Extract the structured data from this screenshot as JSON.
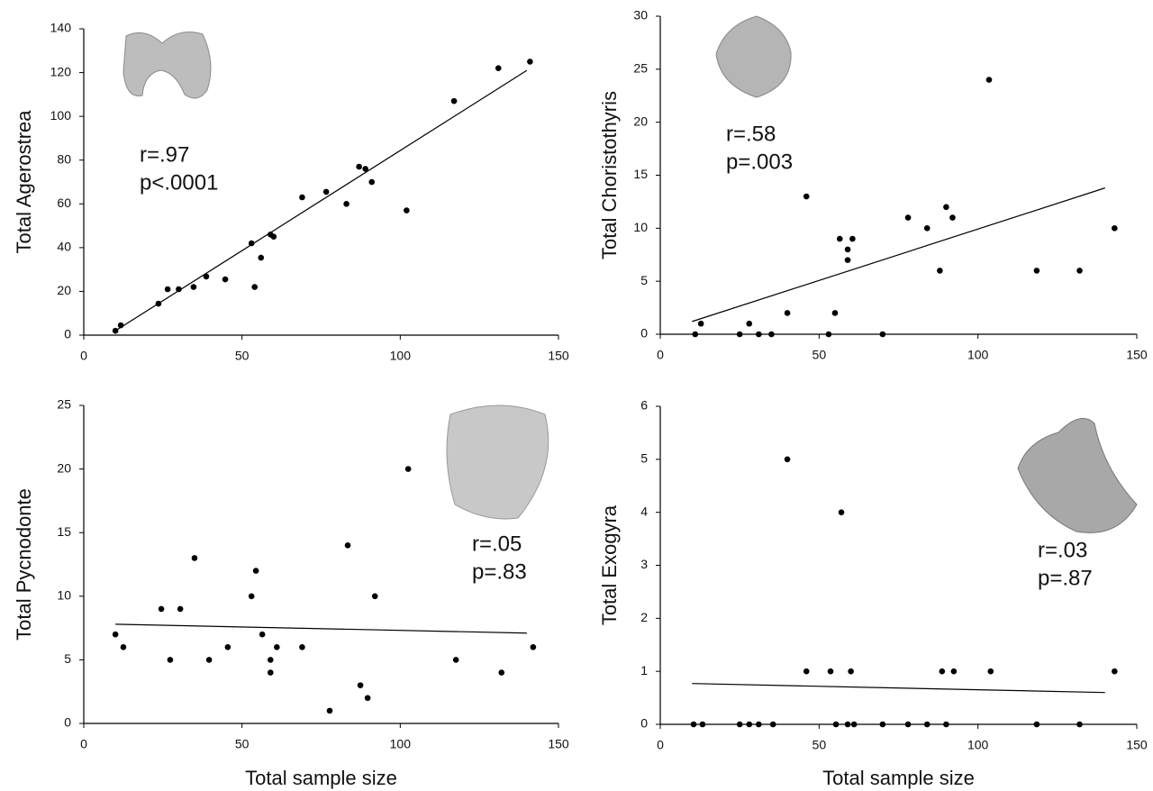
{
  "chart_data": [
    {
      "type": "scatter",
      "ylabel": "Total Agerostrea",
      "annotations": [
        "r=.97",
        "p<.0001"
      ],
      "color": "#000000",
      "x": [
        10,
        11.7,
        23.6,
        26.5,
        30,
        34.7,
        38.7,
        44.7,
        53,
        54,
        56,
        59,
        60,
        69,
        76.6,
        83,
        87,
        89,
        91,
        102,
        117,
        131,
        141
      ],
      "values": [
        2,
        4.5,
        14.4,
        21,
        21,
        22,
        26.8,
        25.5,
        42,
        22,
        35.4,
        46,
        45,
        63,
        65.5,
        60,
        77,
        76,
        70,
        57,
        107,
        122,
        125
      ],
      "trend": {
        "x": [
          10,
          140
        ],
        "values": [
          2,
          121
        ]
      },
      "xlim": [
        0,
        150
      ],
      "xticks": [
        0,
        50,
        100,
        150
      ],
      "ylim": [
        0,
        140
      ],
      "yticks": [
        0,
        20,
        40,
        60,
        80,
        100,
        120,
        140
      ]
    },
    {
      "type": "scatter",
      "ylabel": "Total Choristothyris",
      "annotations": [
        "r=.58",
        "p=.003"
      ],
      "color": "#000000",
      "x": [
        11,
        12.8,
        25,
        28,
        31,
        35,
        40,
        46,
        53,
        55,
        56.5,
        59,
        59,
        60.5,
        70,
        78,
        84,
        88,
        90,
        92,
        103.5,
        118.5,
        132,
        143
      ],
      "values": [
        0,
        1,
        0,
        1,
        0,
        0,
        2,
        13,
        0,
        2,
        9,
        8,
        7,
        9,
        0,
        11,
        10,
        6,
        12,
        11,
        24,
        6,
        6,
        10
      ],
      "trend": {
        "x": [
          10,
          140
        ],
        "values": [
          1.2,
          13.8
        ]
      },
      "xlim": [
        0,
        150
      ],
      "xticks": [
        0,
        50,
        100,
        150
      ],
      "ylim": [
        0,
        30
      ],
      "yticks": [
        0,
        5,
        10,
        15,
        20,
        25,
        30
      ]
    },
    {
      "type": "scatter",
      "ylabel": "Total Pycnodonte",
      "xlabel": "Total sample size",
      "annotations": [
        "r=.05",
        "p=.83"
      ],
      "color": "#000000",
      "x": [
        10,
        12.5,
        24.5,
        27.3,
        30.5,
        35,
        39.6,
        45.5,
        53,
        54.4,
        56.4,
        59,
        59,
        61,
        69,
        77.7,
        83.4,
        87.4,
        89.7,
        92,
        102.5,
        117.6,
        132,
        142
      ],
      "values": [
        7,
        6,
        9,
        5,
        9,
        13,
        5,
        6,
        10,
        12,
        7,
        5,
        4,
        6,
        6,
        1,
        14,
        3,
        2,
        10,
        20,
        5,
        4,
        6
      ],
      "trend": {
        "x": [
          10,
          140
        ],
        "values": [
          7.8,
          7.1
        ]
      },
      "xlim": [
        0,
        150
      ],
      "xticks": [
        0,
        50,
        100,
        150
      ],
      "ylim": [
        0,
        25
      ],
      "yticks": [
        0,
        5,
        10,
        15,
        20,
        25
      ]
    },
    {
      "type": "scatter",
      "ylabel": "Total Exogyra",
      "xlabel": "Total sample size",
      "annotations": [
        "r=.03",
        "p=.87"
      ],
      "color": "#000000",
      "x": [
        10.5,
        13.3,
        25,
        28,
        31,
        35.5,
        55.3,
        59,
        61,
        70,
        78,
        84,
        90,
        118.5,
        132,
        46,
        53.6,
        60,
        88.7,
        92.4,
        104,
        143,
        40,
        57
      ],
      "values": [
        0,
        0,
        0,
        0,
        0,
        0,
        0,
        0,
        0,
        0,
        0,
        0,
        0,
        0,
        0,
        1,
        1,
        1,
        1,
        1,
        1,
        1,
        5,
        4
      ],
      "trend": {
        "x": [
          10,
          140
        ],
        "values": [
          0.77,
          0.6
        ]
      },
      "xlim": [
        0,
        150
      ],
      "xticks": [
        0,
        50,
        100,
        150
      ],
      "ylim": [
        0,
        6
      ],
      "yticks": [
        0,
        1,
        2,
        3,
        4,
        5,
        6
      ]
    }
  ]
}
